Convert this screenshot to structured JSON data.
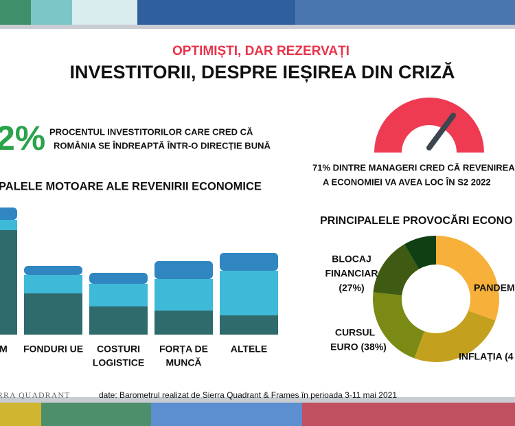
{
  "header": {
    "subtitle": "OPTIMIȘTI, DAR REZERVAȚI",
    "title": "INVESTITORII, DESPRE IEȘIREA DIN CRIZĂ"
  },
  "stat": {
    "value_text": "2%",
    "lines": [
      "PROCENTUL INVESTITORILOR CARE CRED CĂ",
      "ROMÂNIA SE ÎNDREAPTĂ ÎNTR-O DIRECȚIE BUNĂ"
    ]
  },
  "gauge": {
    "lines": [
      "71% DINTRE MANAGERI CRED CĂ REVENIREA",
      "A ECONOMIEI VA AVEA LOC ÎN  S2 2022"
    ]
  },
  "bars": {
    "type": "bar",
    "title": "PALELE MOTOARE ALE REVENIRII ECONOMICE",
    "categories": [
      [
        "M"
      ],
      [
        "FONDURI UE"
      ],
      [
        "COSTURI",
        "LOGISTICE"
      ],
      [
        "FORȚA DE",
        "MUNCĂ"
      ],
      [
        "ALTELE"
      ]
    ],
    "series": [
      {
        "color": "#2f6b6c",
        "values": [
          152,
          60,
          41,
          35,
          28
        ]
      },
      {
        "color": "#3fb9d8",
        "values": [
          15,
          27,
          33,
          46,
          65
        ]
      },
      {
        "color": "#2f86c0",
        "values": [
          18,
          13,
          16,
          26,
          26
        ]
      }
    ]
  },
  "donut": {
    "type": "pie",
    "title": "PRINCIPALELE PROVOCĂRI ECONO",
    "segments": [
      {
        "label": [
          "PANDEM"
        ],
        "value": 55,
        "color": "#f7b03a"
      },
      {
        "label": [
          "INFLAȚIA (4"
        ],
        "value": 45,
        "color": "#c3a11f"
      },
      {
        "label": [
          "CURSUL",
          "EURO (38%)"
        ],
        "value": 38,
        "color": "#7b8a14"
      },
      {
        "label": [
          "BLOCAJ",
          "FINANCIAR",
          "(27%)"
        ],
        "value": 27,
        "color": "#3f5b13"
      },
      {
        "value": 15,
        "color": "#0f3f12"
      }
    ]
  },
  "footer": {
    "source": "date:  Barometrul realizat de Sierra Quadrant & Frames în perioada 3-11 mai 2021",
    "logo": "RRA QUADRANT"
  }
}
